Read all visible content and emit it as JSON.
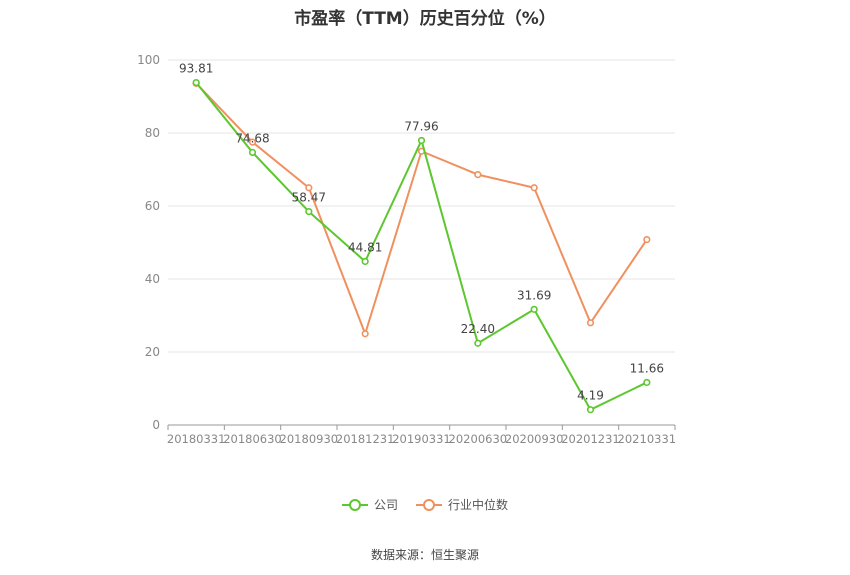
{
  "chart_data": {
    "type": "line",
    "title": "市盈率（TTM）历史百分位（%）",
    "categories": [
      "20180331",
      "20180630",
      "20180930",
      "20181231",
      "20190331",
      "20200630",
      "20200930",
      "20201231",
      "20210331"
    ],
    "ylim": [
      0,
      100
    ],
    "yticks": [
      "0",
      "20",
      "40",
      "60",
      "80",
      "100"
    ],
    "grid": true,
    "legend_position": "bottom-center",
    "series": [
      {
        "name": "公司",
        "color": "#5cc72e",
        "values": [
          93.81,
          74.68,
          58.47,
          44.81,
          77.96,
          22.4,
          31.69,
          4.19,
          11.66
        ],
        "labels": [
          "93.81",
          "74.68",
          "58.47",
          "44.81",
          "77.96",
          "22.40",
          "31.69",
          "4.19",
          "11.66"
        ]
      },
      {
        "name": "行业中位数",
        "color": "#f0905e",
        "values": [
          93.6,
          77.5,
          65.0,
          25.0,
          75.0,
          68.6,
          65.0,
          28.0,
          50.8
        ]
      }
    ],
    "source": "数据来源：恒生聚源"
  }
}
